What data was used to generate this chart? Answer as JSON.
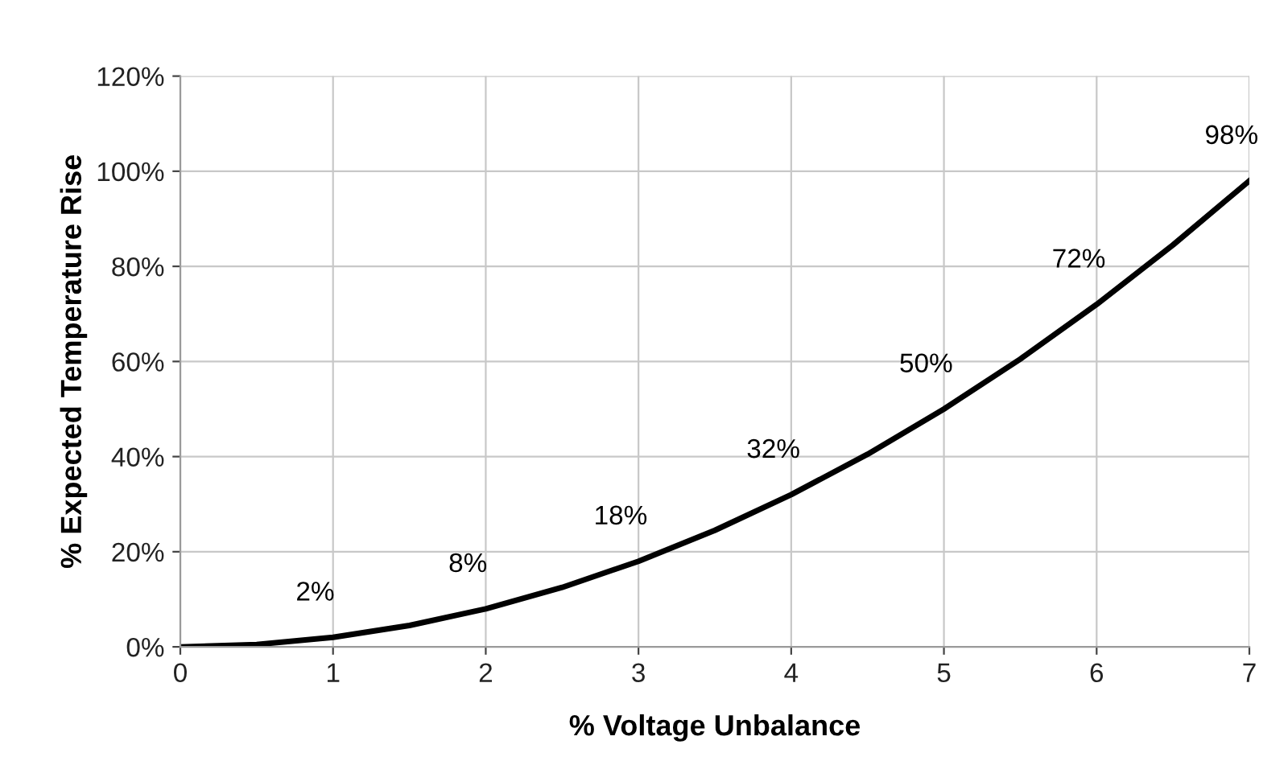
{
  "chart_data": {
    "type": "line",
    "xlabel": "% Voltage Unbalance",
    "ylabel": "% Expected Temperature Rise",
    "x": [
      0,
      0.5,
      1,
      1.5,
      2,
      2.5,
      3,
      3.5,
      4,
      4.5,
      5,
      5.5,
      6,
      6.5,
      7
    ],
    "series": [
      {
        "color": "#000000",
        "values": [
          0,
          0.5,
          2,
          4.5,
          8,
          12.5,
          18,
          24.5,
          32,
          40.5,
          50,
          60.5,
          72,
          84.5,
          98
        ],
        "value_labels": [
          null,
          null,
          "2%",
          null,
          "8%",
          null,
          "18%",
          null,
          "32%",
          null,
          "50%",
          null,
          "72%",
          null,
          "98%"
        ]
      }
    ],
    "xlim": [
      0,
      7
    ],
    "xticks": [
      0,
      1,
      2,
      3,
      4,
      5,
      6,
      7
    ],
    "ylim": [
      0,
      120
    ],
    "yticks": [
      {
        "value": 0,
        "label": "0%"
      },
      {
        "value": 20,
        "label": "20%"
      },
      {
        "value": 40,
        "label": "40%"
      },
      {
        "value": 60,
        "label": "60%"
      },
      {
        "value": 80,
        "label": "80%"
      },
      {
        "value": 100,
        "label": "100%"
      },
      {
        "value": 120,
        "label": "120%"
      }
    ],
    "grid": true,
    "marker": "none",
    "line_style": "solid"
  }
}
